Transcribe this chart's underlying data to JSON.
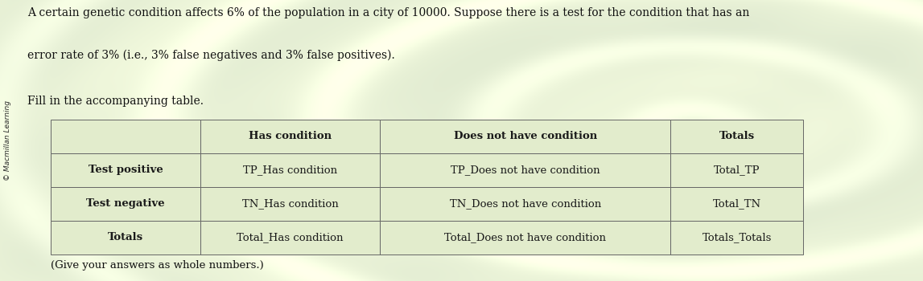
{
  "title_line1": "A certain genetic condition affects 6% of the population in a city of 10000. Suppose there is a test for the condition that has an",
  "title_line2": "error rate of 3% (i.e., 3% false negatives and 3% false positives).",
  "instruction": "Fill in the accompanying table.",
  "footnote": "(Give your answers as whole numbers.)",
  "sidebar_text": "© Macmillan Learning",
  "table": {
    "col_headers": [
      "",
      "Has condition",
      "Does not have condition",
      "Totals"
    ],
    "rows": [
      [
        "Test positive",
        "TP_Has condition",
        "TP_Does not have condition",
        "Total_TP"
      ],
      [
        "Test negative",
        "TN_Has condition",
        "TN_Does not have condition",
        "Total_TN"
      ],
      [
        "Totals",
        "Total_Has condition",
        "Total_Does not have condition",
        "Totals_Totals"
      ]
    ]
  },
  "bg_color_center": "#e8eed8",
  "bg_color_edge": "#b8c8a0",
  "table_bg": "#e2eccc",
  "cell_text_color": "#1a1a1a",
  "title_color": "#111111",
  "table_border_color": "#666666",
  "cell_font_size": 9.5,
  "title_font_size": 10,
  "instruction_font_size": 10,
  "footnote_font_size": 9.5
}
